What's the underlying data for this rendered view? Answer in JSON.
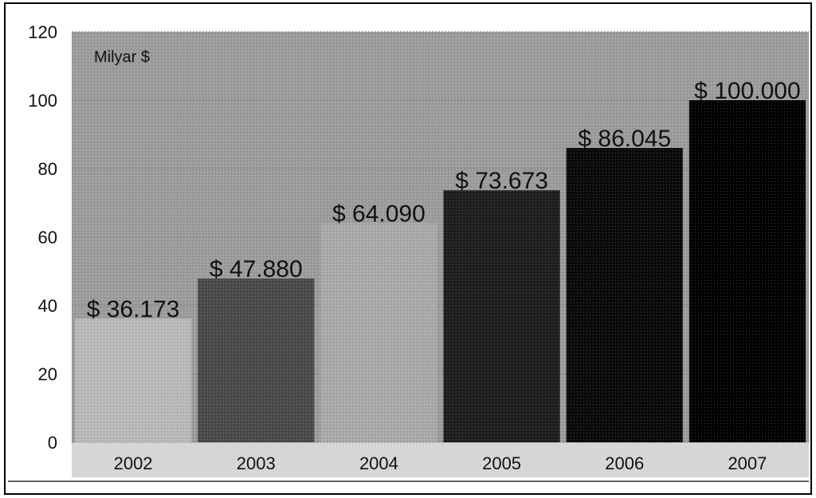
{
  "chart_data": {
    "type": "bar",
    "categories": [
      "2002",
      "2003",
      "2004",
      "2005",
      "2006",
      "2007"
    ],
    "values": [
      36.173,
      47.88,
      64.09,
      73.673,
      86.045,
      100.0
    ],
    "value_labels": [
      "$ 36.173",
      "$ 47.880",
      "$ 64.090",
      "$ 73.673",
      "$ 86.045",
      "$ 100.000"
    ],
    "bar_colors": [
      "#b9b9b9",
      "#4a4a4a",
      "#a9a9a9",
      "#1e1e1e",
      "#0a0a0a",
      "#000000"
    ],
    "y_ticks": [
      "0",
      "20",
      "40",
      "60",
      "80",
      "100",
      "120"
    ],
    "ylim": [
      0,
      120
    ],
    "unit_label": "Milyar $",
    "plot_background": "#9c9c9c",
    "grid": true
  }
}
